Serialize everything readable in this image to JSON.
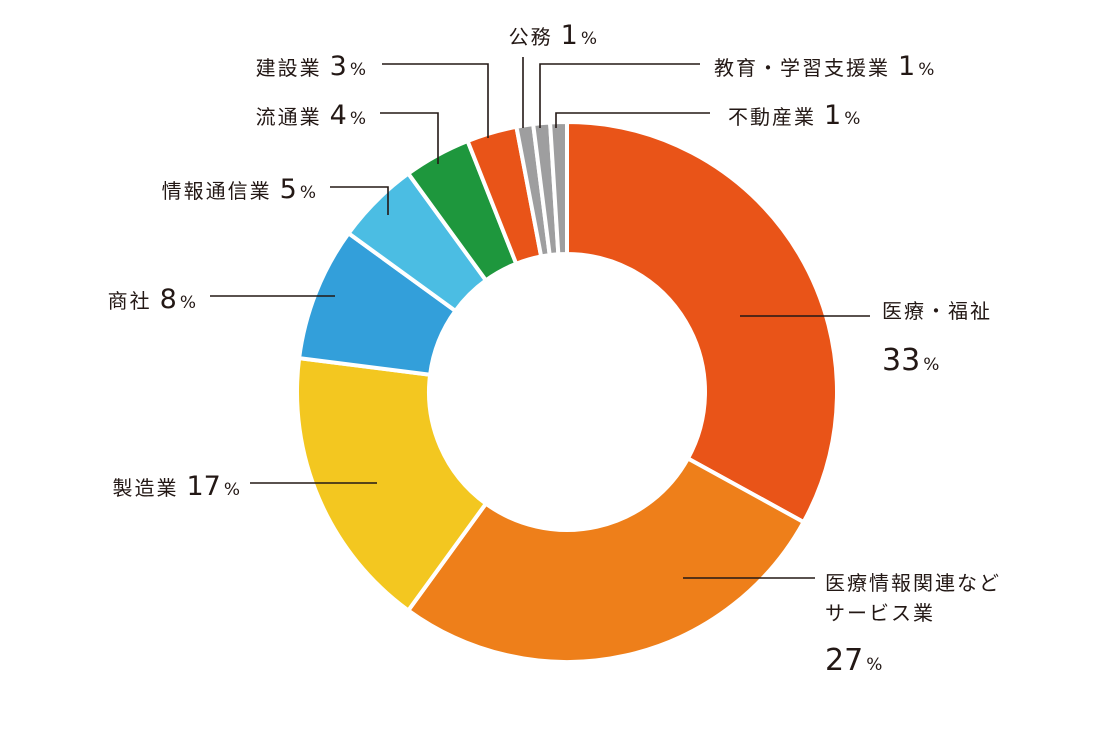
{
  "chart_data": {
    "type": "pie",
    "donut": true,
    "unit": "%",
    "slices": [
      {
        "label": "医療・福祉",
        "value": 33,
        "color": "#E95418"
      },
      {
        "label": "医療情報関連などサービス業",
        "value": 27,
        "color": "#EE7F1A"
      },
      {
        "label": "製造業",
        "value": 17,
        "color": "#F3C720"
      },
      {
        "label": "商社",
        "value": 8,
        "color": "#339FDA"
      },
      {
        "label": "情報通信業",
        "value": 5,
        "color": "#4BBDE3"
      },
      {
        "label": "流通業",
        "value": 4,
        "color": "#1E973D"
      },
      {
        "label": "建設業",
        "value": 3,
        "color": "#E95418"
      },
      {
        "label": "公務",
        "value": 1,
        "color": "#9E9E9F"
      },
      {
        "label": "教育・学習支援業",
        "value": 1,
        "color": "#9E9E9F"
      },
      {
        "label": "不動産業",
        "value": 1,
        "color": "#9E9E9F"
      }
    ],
    "legend": "none"
  },
  "labels": [
    {
      "name_lines": [
        "医療・福祉"
      ],
      "num": "33",
      "unit": "%"
    },
    {
      "name_lines": [
        "医療情報関連など",
        "サービス業"
      ],
      "num": "27",
      "unit": "%"
    },
    {
      "name_lines": [
        "製造業"
      ],
      "num": "17",
      "unit": "%"
    },
    {
      "name_lines": [
        "商社"
      ],
      "num": "8",
      "unit": "%"
    },
    {
      "name_lines": [
        "情報通信業"
      ],
      "num": "5",
      "unit": "%"
    },
    {
      "name_lines": [
        "流通業"
      ],
      "num": "4",
      "unit": "%"
    },
    {
      "name_lines": [
        "建設業"
      ],
      "num": "3",
      "unit": "%"
    },
    {
      "name_lines": [
        "公務"
      ],
      "num": "1",
      "unit": "%"
    },
    {
      "name_lines": [
        "教育・学習支援業"
      ],
      "num": "1",
      "unit": "%"
    },
    {
      "name_lines": [
        "不動産業"
      ],
      "num": "1",
      "unit": "%"
    }
  ]
}
